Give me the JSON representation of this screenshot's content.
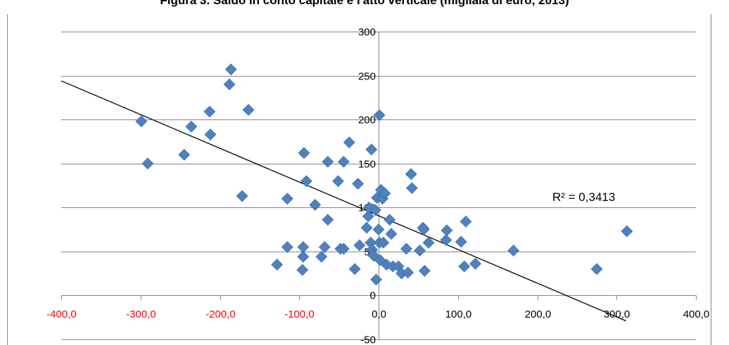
{
  "chart_data": {
    "type": "scatter",
    "title": "Figura 3. Saldo in conto capitale e l'atto verticale (migliaia di euro, 2013)",
    "xlabel": "",
    "ylabel": "",
    "xlim": [
      -400,
      400
    ],
    "ylim": [
      -50,
      300
    ],
    "x_ticks": [
      -400,
      -300,
      -200,
      -100,
      0,
      100,
      200,
      300,
      400
    ],
    "x_tick_labels": [
      "-400,0",
      "-300,0",
      "-200,0",
      "-100,0",
      "0,0",
      "100,0",
      "200,0",
      "300,0",
      "400,0"
    ],
    "y_ticks": [
      -50,
      0,
      50,
      100,
      150,
      200,
      250,
      300
    ],
    "y_tick_labels": [
      "-50",
      "0",
      "50",
      "100",
      "150",
      "200",
      "250",
      "300"
    ],
    "grid": "horizontal",
    "legend": "none",
    "series": [
      {
        "marker": "diamond",
        "color": "#4F81BD",
        "points": [
          [
            -299,
            198
          ],
          [
            -291,
            150
          ],
          [
            -245,
            160
          ],
          [
            -236,
            192
          ],
          [
            -213,
            209
          ],
          [
            -212,
            183
          ],
          [
            -186,
            257
          ],
          [
            -188,
            240
          ],
          [
            -164,
            211
          ],
          [
            -172,
            113
          ],
          [
            -128,
            35
          ],
          [
            -115,
            110
          ],
          [
            -115,
            55
          ],
          [
            -95,
            55
          ],
          [
            -95,
            44
          ],
          [
            -96,
            29
          ],
          [
            -94,
            162
          ],
          [
            -91,
            130
          ],
          [
            -80,
            103
          ],
          [
            -72,
            44
          ],
          [
            -68,
            55
          ],
          [
            -64,
            86
          ],
          [
            -64,
            152
          ],
          [
            -51,
            130
          ],
          [
            -48,
            53
          ],
          [
            -44,
            152
          ],
          [
            -44,
            53
          ],
          [
            -37,
            174
          ],
          [
            -30,
            30
          ],
          [
            -26,
            127
          ],
          [
            -24,
            57
          ],
          [
            -15,
            77
          ],
          [
            -13,
            90
          ],
          [
            -12,
            100
          ],
          [
            -10,
            60
          ],
          [
            -9,
            166
          ],
          [
            -8,
            52
          ],
          [
            -6,
            45
          ],
          [
            -4,
            97
          ],
          [
            -3,
            18
          ],
          [
            -2,
            111
          ],
          [
            0,
            75
          ],
          [
            1,
            60
          ],
          [
            1,
            205
          ],
          [
            2,
            40
          ],
          [
            3,
            120
          ],
          [
            5,
            110
          ],
          [
            6,
            60
          ],
          [
            8,
            116
          ],
          [
            10,
            35
          ],
          [
            14,
            86
          ],
          [
            16,
            70
          ],
          [
            18,
            33
          ],
          [
            25,
            33
          ],
          [
            29,
            25
          ],
          [
            35,
            53
          ],
          [
            37,
            26
          ],
          [
            41,
            138
          ],
          [
            42,
            122
          ],
          [
            52,
            51
          ],
          [
            56,
            77
          ],
          [
            57,
            75
          ],
          [
            58,
            28
          ],
          [
            63,
            60
          ],
          [
            85,
            63
          ],
          [
            86,
            74
          ],
          [
            104,
            61
          ],
          [
            108,
            33
          ],
          [
            110,
            84
          ],
          [
            122,
            36
          ],
          [
            170,
            51
          ],
          [
            275,
            30
          ],
          [
            313,
            73
          ]
        ]
      }
    ],
    "trendline": {
      "type": "linear",
      "x_range": [
        -400,
        312
      ],
      "y_at_start": 244,
      "y_at_end": -29,
      "label": "R² = 0,3413"
    }
  }
}
